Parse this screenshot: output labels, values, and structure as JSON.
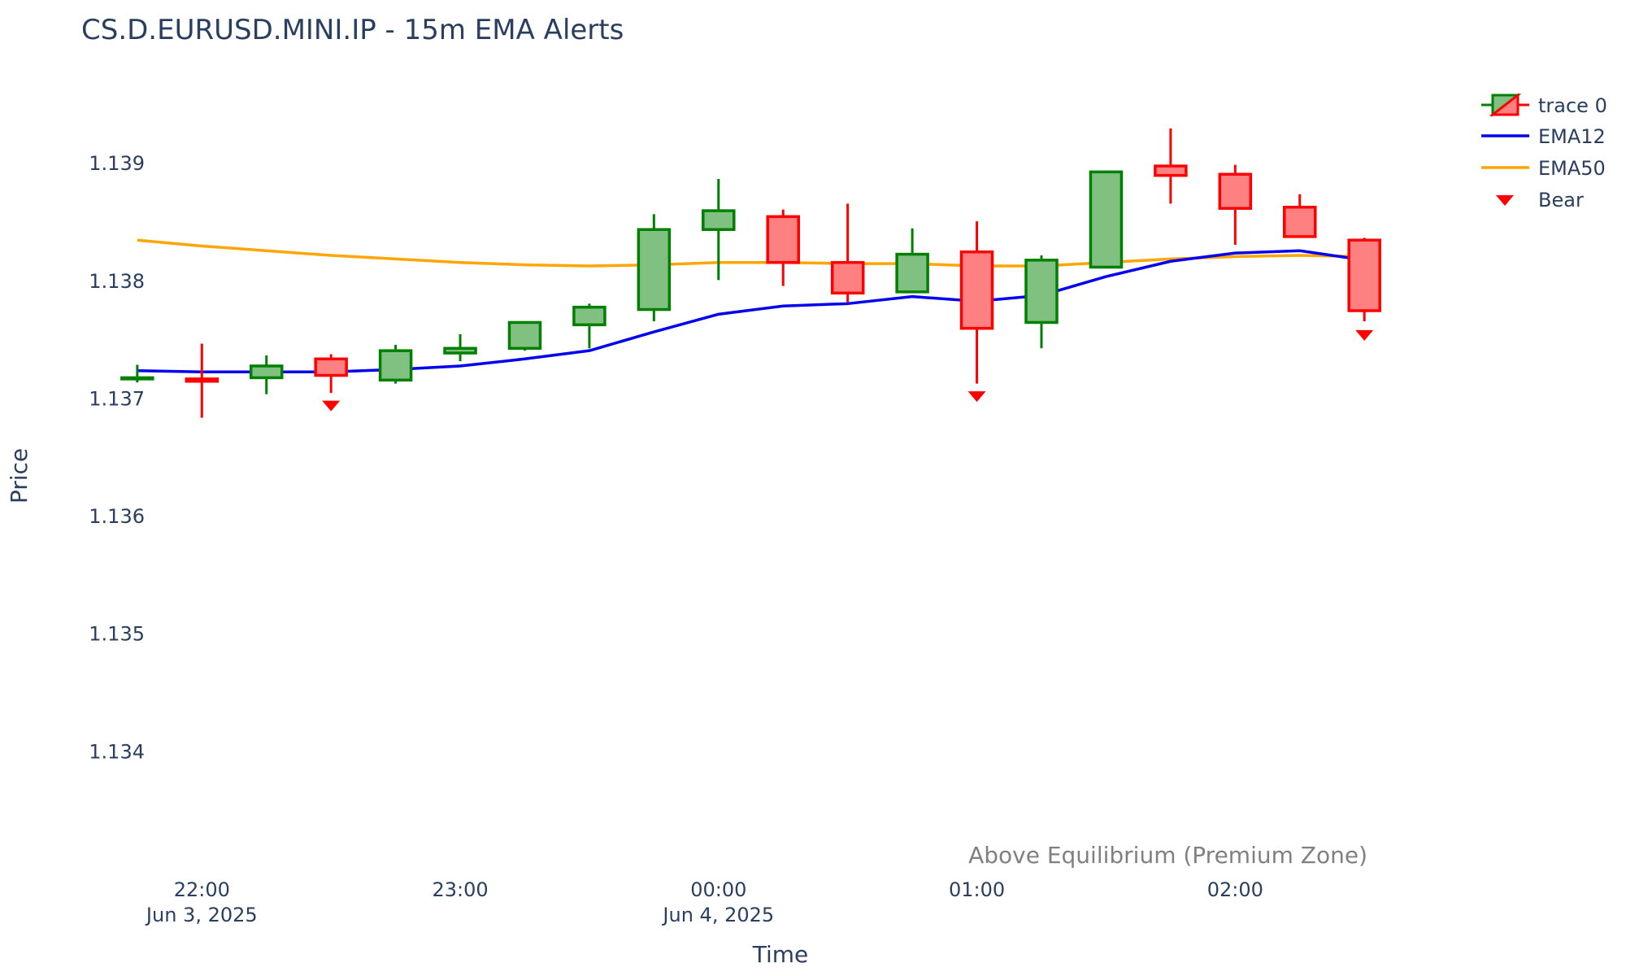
{
  "chart_data": {
    "type": "candlestick",
    "title": "CS.D.EURUSD.MINI.IP - 15m EMA Alerts",
    "xlabel": "Time",
    "ylabel": "Price",
    "ylim": [
      1.1332,
      1.1397
    ],
    "xlim": [
      "2025-06-03 21:32",
      "2025-06-04 02:53"
    ],
    "x_ticks": [
      {
        "t": "2025-06-03 22:00",
        "line1": "22:00",
        "line2": "Jun 3, 2025"
      },
      {
        "t": "2025-06-03 23:00",
        "line1": "23:00",
        "line2": ""
      },
      {
        "t": "2025-06-04 00:00",
        "line1": "00:00",
        "line2": "Jun 4, 2025"
      },
      {
        "t": "2025-06-04 01:00",
        "line1": "01:00",
        "line2": ""
      },
      {
        "t": "2025-06-04 02:00",
        "line1": "02:00",
        "line2": ""
      }
    ],
    "y_ticks": [
      1.134,
      1.135,
      1.136,
      1.137,
      1.138,
      1.139
    ],
    "y_tick_labels": [
      "1.134",
      "1.135",
      "1.136",
      "1.137",
      "1.138",
      "1.139"
    ],
    "grid": false,
    "legend_position": "top-right",
    "candles": {
      "name": "trace 0",
      "increasing_color": "#008000",
      "increasing_fill": "#80c080",
      "decreasing_color": "#ff0000",
      "decreasing_fill": "#ff8080",
      "time": [
        "2025-06-03 21:45",
        "2025-06-03 22:00",
        "2025-06-03 22:15",
        "2025-06-03 22:30",
        "2025-06-03 22:45",
        "2025-06-03 23:00",
        "2025-06-03 23:15",
        "2025-06-03 23:30",
        "2025-06-03 23:45",
        "2025-06-04 00:00",
        "2025-06-04 00:15",
        "2025-06-04 00:30",
        "2025-06-04 00:45",
        "2025-06-04 01:00",
        "2025-06-04 01:15",
        "2025-06-04 01:30",
        "2025-06-04 01:45",
        "2025-06-04 02:00",
        "2025-06-04 02:15",
        "2025-06-04 02:30"
      ],
      "open": [
        1.13718,
        1.13717,
        1.13718,
        1.13734,
        1.13716,
        1.13739,
        1.13743,
        1.13763,
        1.13776,
        1.13844,
        1.13855,
        1.13816,
        1.13791,
        1.13825,
        1.13765,
        1.13812,
        1.13898,
        1.13891,
        1.13863,
        1.13835
      ],
      "high": [
        1.13729,
        1.13747,
        1.13737,
        1.13738,
        1.13746,
        1.13755,
        1.13766,
        1.13781,
        1.13857,
        1.13887,
        1.13861,
        1.13866,
        1.13845,
        1.13851,
        1.13822,
        1.13894,
        1.1393,
        1.13899,
        1.13874,
        1.13837
      ],
      "low": [
        1.13714,
        1.13684,
        1.13704,
        1.13705,
        1.13713,
        1.13732,
        1.13741,
        1.13743,
        1.13766,
        1.13801,
        1.13796,
        1.13782,
        1.1379,
        1.13713,
        1.13743,
        1.13812,
        1.13866,
        1.13831,
        1.13838,
        1.13766
      ],
      "close": [
        1.13718,
        1.13715,
        1.13728,
        1.1372,
        1.13741,
        1.13743,
        1.13765,
        1.13778,
        1.13844,
        1.1386,
        1.13816,
        1.1379,
        1.13823,
        1.1376,
        1.13818,
        1.13893,
        1.1389,
        1.13862,
        1.13838,
        1.13775
      ]
    },
    "series": [
      {
        "name": "EMA12",
        "color": "#0000ee",
        "values": [
          1.13724,
          1.13723,
          1.13723,
          1.13723,
          1.13725,
          1.13728,
          1.13734,
          1.13741,
          1.13757,
          1.13772,
          1.13779,
          1.13781,
          1.13787,
          1.13783,
          1.13788,
          1.13804,
          1.13817,
          1.13824,
          1.13826,
          1.13818
        ]
      },
      {
        "name": "EMA50",
        "color": "#ffa500",
        "values": [
          1.13835,
          1.1383,
          1.13826,
          1.13822,
          1.13819,
          1.13816,
          1.13814,
          1.13813,
          1.13814,
          1.13816,
          1.13816,
          1.13815,
          1.13815,
          1.13813,
          1.13813,
          1.13816,
          1.13819,
          1.13821,
          1.13822,
          1.13821
        ]
      }
    ],
    "markers": {
      "name": "Bear",
      "color": "#ff0000",
      "symbol": "triangle-down",
      "points": [
        {
          "t": "2025-06-03 22:30",
          "y": 1.13694
        },
        {
          "t": "2025-06-04 01:00",
          "y": 1.13702
        },
        {
          "t": "2025-06-04 02:30",
          "y": 1.13754
        }
      ]
    },
    "annotation": "Above Equilibrium (Premium Zone)"
  },
  "legend": {
    "items": [
      {
        "key": "candles",
        "label": "trace 0"
      },
      {
        "key": "ema12",
        "label": "EMA12"
      },
      {
        "key": "ema50",
        "label": "EMA50"
      },
      {
        "key": "bear",
        "label": "Bear"
      }
    ]
  }
}
